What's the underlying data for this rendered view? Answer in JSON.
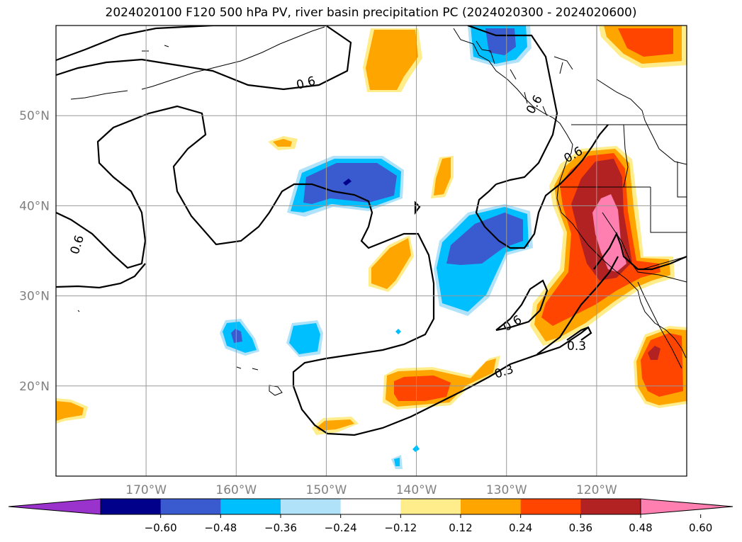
{
  "chart_data": {
    "type": "map-contour",
    "title": "2024020100 F120 500 hPa PV, river basin precipitation PC (2024020300 - 2024020600)",
    "lon_range": [
      -180,
      -110
    ],
    "lat_range": [
      10,
      60
    ],
    "lon_ticks": [
      -170,
      -160,
      -150,
      -140,
      -130,
      -120
    ],
    "lon_tick_labels": [
      "170°W",
      "160°W",
      "150°W",
      "140°W",
      "130°W",
      "120°W"
    ],
    "lat_ticks": [
      20,
      30,
      40,
      50
    ],
    "lat_tick_labels": [
      "20°N",
      "30°N",
      "40°N",
      "50°N"
    ],
    "grid": true,
    "colorbar": {
      "orientation": "horizontal",
      "extend": "both",
      "levels": [
        -0.6,
        -0.48,
        -0.36,
        -0.24,
        -0.12,
        0.12,
        0.24,
        0.36,
        0.48,
        0.6
      ],
      "tick_labels": [
        "−0.60",
        "−0.48",
        "−0.36",
        "−0.24",
        "−0.12",
        "0.12",
        "0.24",
        "0.36",
        "0.48",
        "0.60"
      ],
      "colors": [
        "#9933cc",
        "#00008b",
        "#3a5bd0",
        "#00bfff",
        "#b0e2fa",
        "#ffffff",
        "#ffec8b",
        "#ffa500",
        "#ff4500",
        "#b22222",
        "#ff80b0"
      ]
    },
    "pv_contours": [
      {
        "level": 0.6,
        "label": "0.6"
      },
      {
        "level": 0.3,
        "label": "0.3"
      }
    ],
    "contour_labels": [
      "0.6",
      "0.6",
      "0.6",
      "0.6",
      "0.6",
      "0.3",
      "0.3"
    ]
  }
}
